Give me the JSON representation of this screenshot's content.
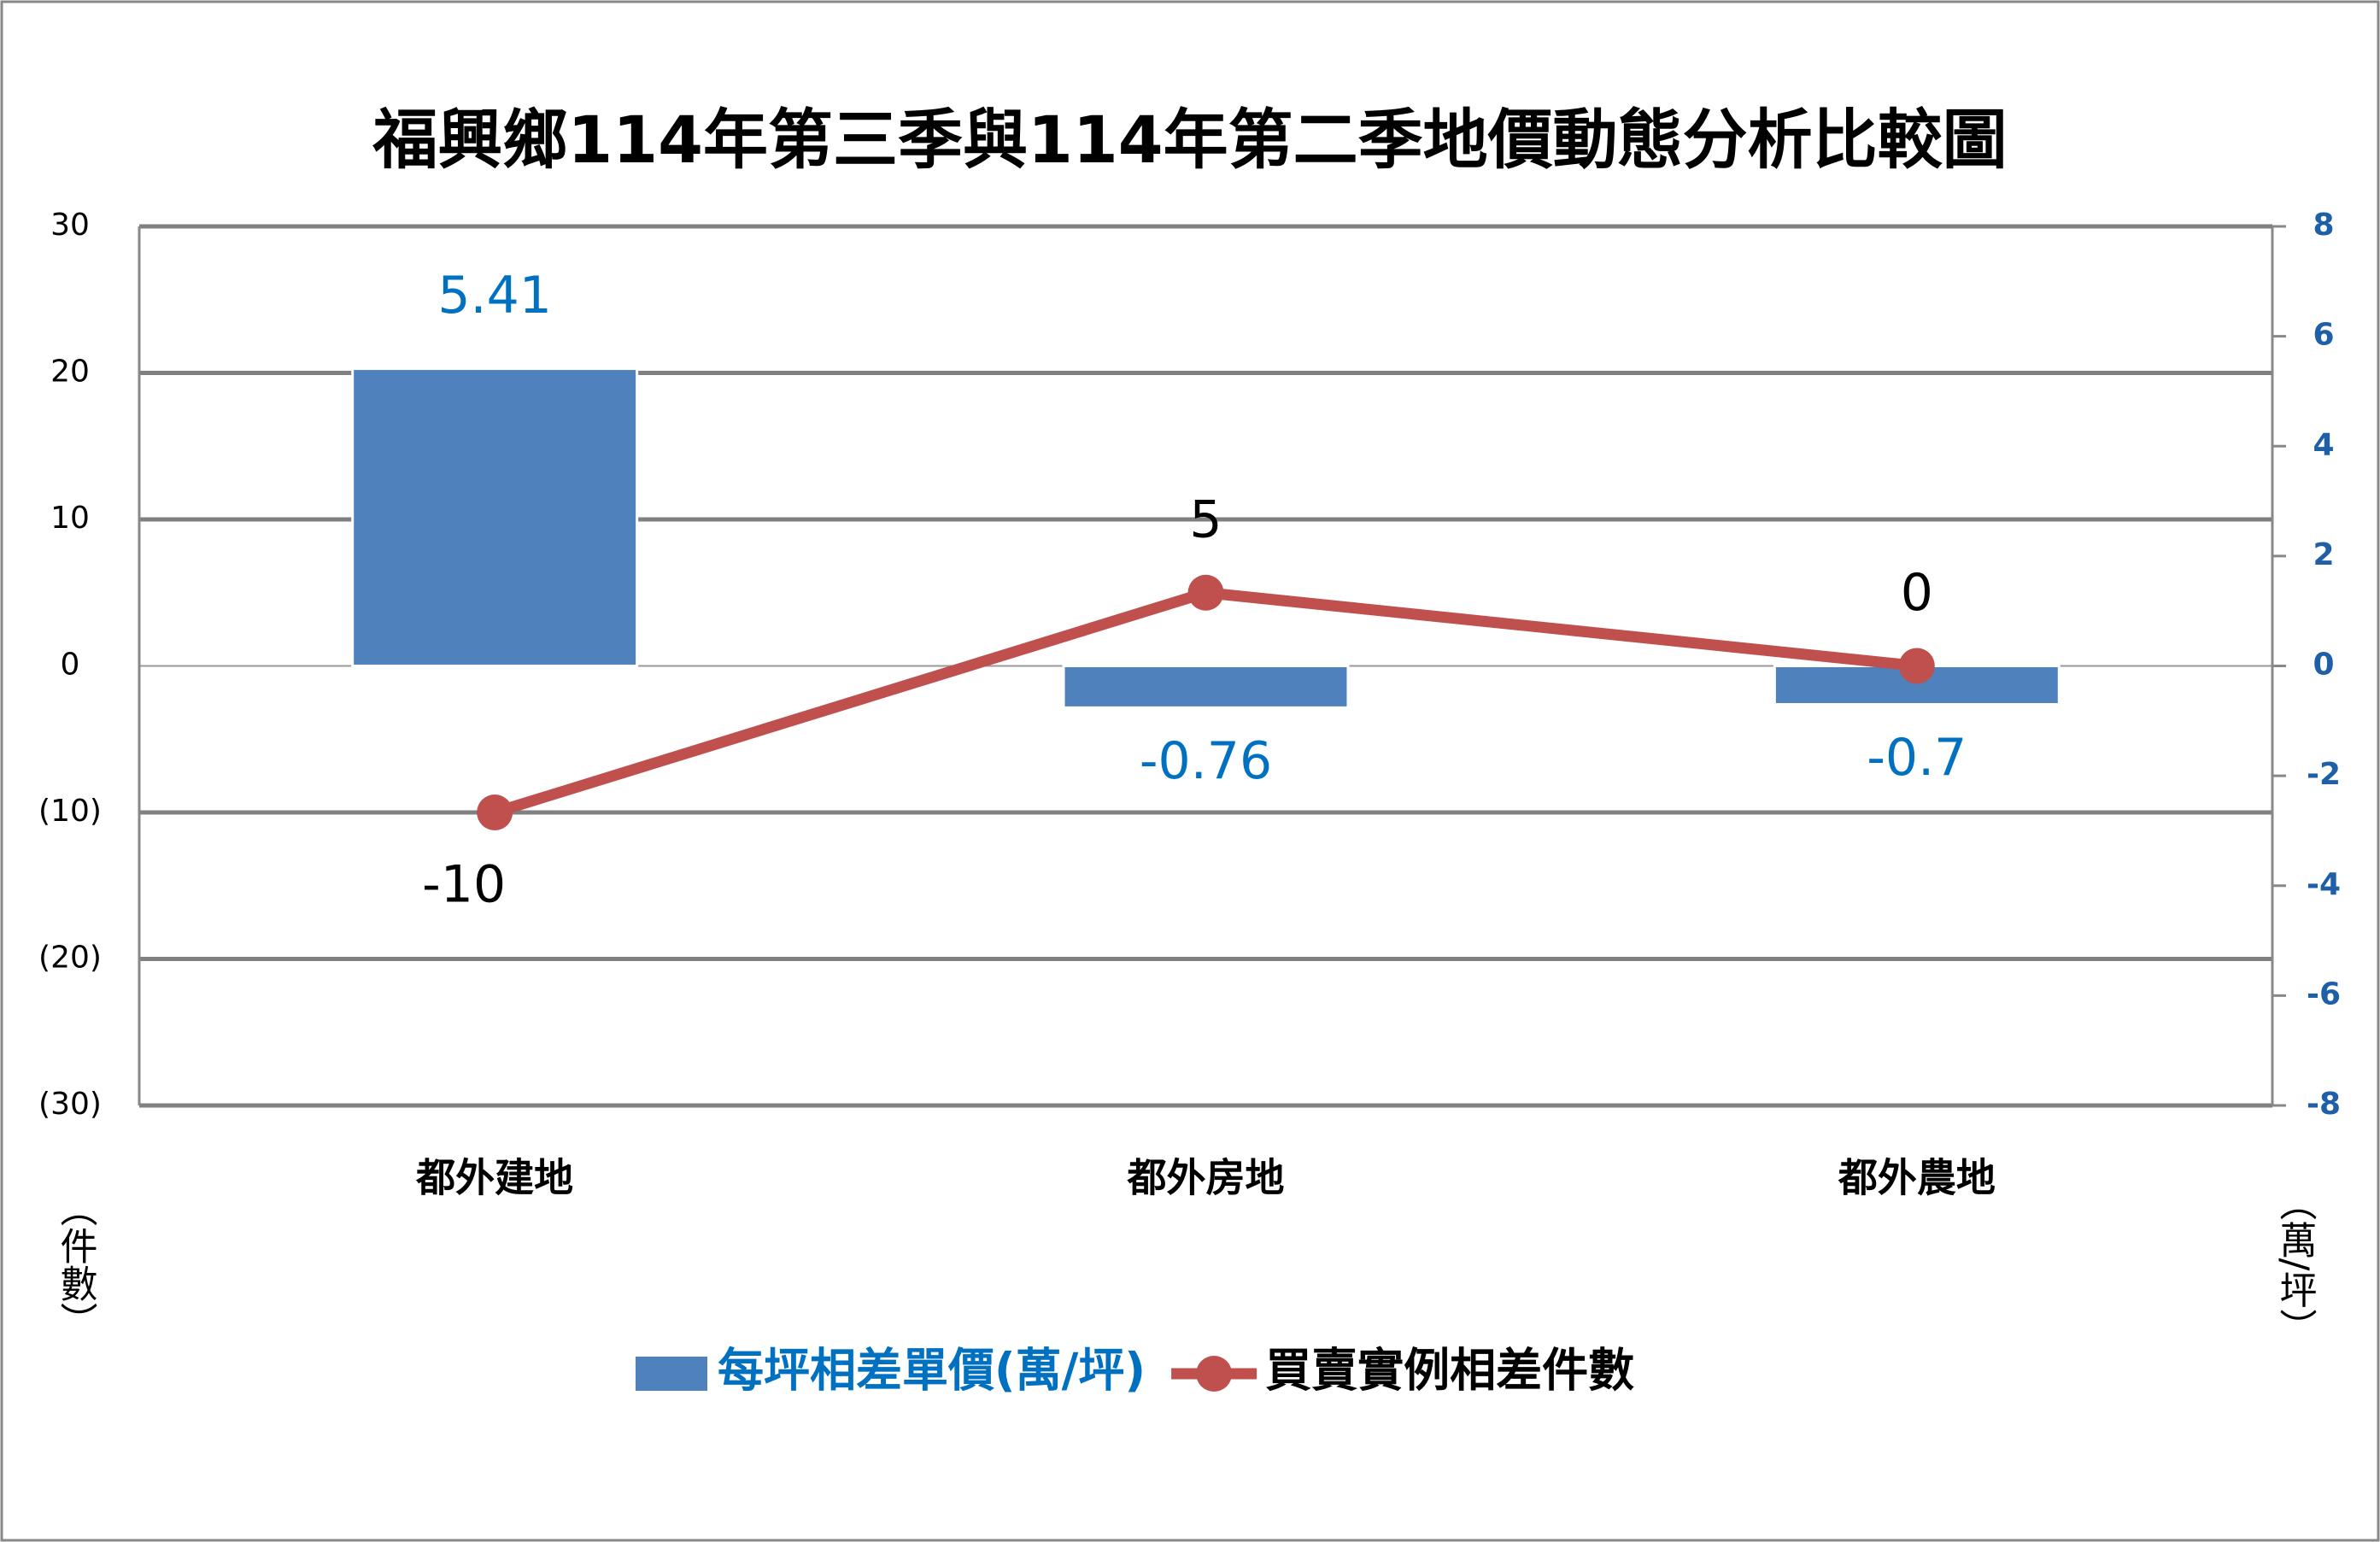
{
  "chart_data": {
    "type": "bar",
    "title": "福興鄉114年第三季與114年第二季地價動態分析比較圖",
    "categories": [
      "都外建地",
      "都外房地",
      "都外農地"
    ],
    "series": [
      {
        "name": "每坪相差單價(萬/坪)",
        "type": "bar",
        "axis": "y2",
        "color": "#4f81bd",
        "values": [
          5.41,
          -0.76,
          -0.7
        ]
      },
      {
        "name": "買賣實例相差件數",
        "type": "line",
        "axis": "y",
        "color": "#c0504d",
        "values": [
          -10,
          5,
          0
        ]
      }
    ],
    "ylim": [
      -30,
      30
    ],
    "yticks": [
      {
        "value": -30,
        "label": "(30)"
      },
      {
        "value": -20,
        "label": "(20)"
      },
      {
        "value": -10,
        "label": "(10)"
      },
      0,
      10,
      20,
      30
    ],
    "y2lim": [
      -8,
      8
    ],
    "y2ticks": [
      -8,
      -6,
      -4,
      -2,
      0,
      2,
      4,
      6,
      8
    ],
    "ylabel": "（件數）",
    "y2label": "（萬/坪）",
    "grid": true,
    "legend": "bottom"
  }
}
